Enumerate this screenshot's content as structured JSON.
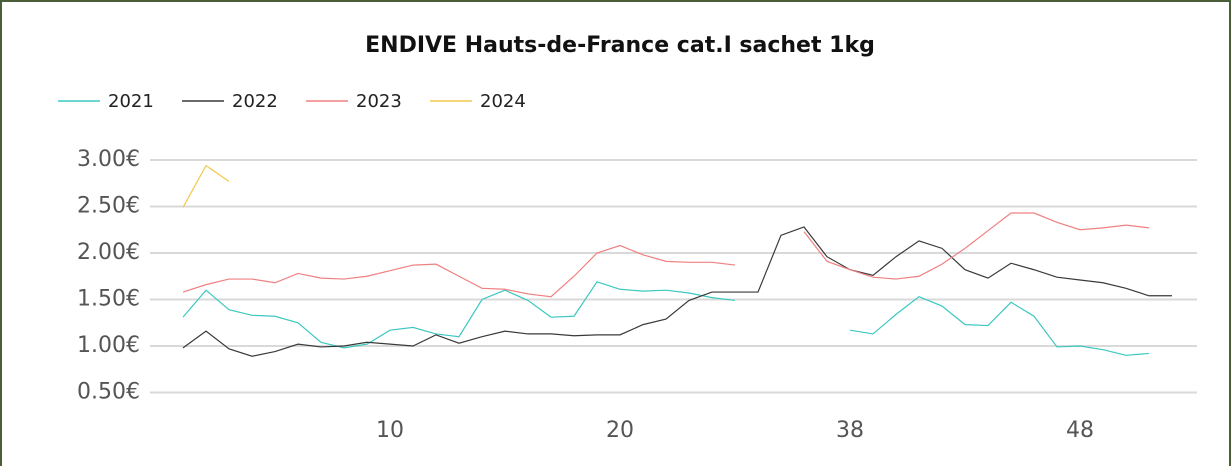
{
  "chart_data": {
    "type": "line",
    "title": "ENDIVE Hauts-de-France cat.I sachet 1kg",
    "categories": [
      null,
      null,
      null,
      null,
      null,
      null,
      null,
      null,
      null,
      "10",
      null,
      null,
      null,
      null,
      null,
      null,
      null,
      null,
      null,
      "20",
      null,
      null,
      null,
      null,
      null,
      null,
      null,
      null,
      null,
      "38",
      null,
      null,
      null,
      null,
      null,
      null,
      null,
      null,
      null,
      "48",
      null,
      null,
      null,
      null
    ],
    "series": [
      {
        "name": "2021",
        "color": "#3cc8c0",
        "values": [
          1.31,
          1.6,
          1.39,
          1.33,
          1.32,
          1.25,
          1.04,
          0.98,
          1.02,
          1.17,
          1.2,
          1.13,
          1.1,
          1.5,
          1.6,
          1.49,
          1.31,
          1.32,
          1.69,
          1.61,
          1.59,
          1.6,
          1.57,
          1.52,
          1.49,
          null,
          null,
          null,
          null,
          1.17,
          1.13,
          1.34,
          1.53,
          1.43,
          1.23,
          1.22,
          1.47,
          1.32,
          0.99,
          1.0,
          0.96,
          0.9,
          0.92,
          null
        ]
      },
      {
        "name": "2022",
        "color": "#3a3a3a",
        "values": [
          0.98,
          1.16,
          0.97,
          0.89,
          0.94,
          1.02,
          0.99,
          1.0,
          1.04,
          1.02,
          1.0,
          1.12,
          1.03,
          1.1,
          1.16,
          1.13,
          1.13,
          1.11,
          1.12,
          1.12,
          1.23,
          1.29,
          1.49,
          1.58,
          1.58,
          1.58,
          2.19,
          2.28,
          1.96,
          1.82,
          1.76,
          1.96,
          2.13,
          2.05,
          1.82,
          1.73,
          1.89,
          1.82,
          1.74,
          1.71,
          1.68,
          1.62,
          1.54,
          1.54
        ]
      },
      {
        "name": "2023",
        "color": "#f08080",
        "values": [
          1.58,
          1.66,
          1.72,
          1.72,
          1.68,
          1.78,
          1.73,
          1.72,
          1.75,
          1.81,
          1.87,
          1.88,
          1.75,
          1.62,
          1.61,
          1.56,
          1.53,
          1.75,
          2.0,
          2.08,
          1.98,
          1.91,
          1.9,
          1.9,
          1.87,
          null,
          null,
          2.23,
          1.91,
          1.82,
          1.74,
          1.72,
          1.75,
          1.88,
          2.05,
          2.24,
          2.43,
          2.43,
          2.33,
          2.25,
          2.27,
          2.3,
          2.27,
          null
        ]
      },
      {
        "name": "2024",
        "color": "#f2c94c",
        "values": [
          2.49,
          2.94,
          2.77,
          null,
          null,
          null,
          null,
          null,
          null,
          null,
          null,
          null,
          null,
          null,
          null,
          null,
          null,
          null,
          null,
          null,
          null,
          null,
          null,
          null,
          null,
          null,
          null,
          null,
          null,
          null,
          null,
          null,
          null,
          null,
          null,
          null,
          null,
          null,
          null,
          null,
          null,
          null,
          null,
          null
        ]
      }
    ],
    "ylim": [
      0.3,
      3.1
    ],
    "yticks": [
      {
        "value": 0.5,
        "label": "0.50€"
      },
      {
        "value": 1.0,
        "label": "1.00€"
      },
      {
        "value": 1.5,
        "label": "1.50€"
      },
      {
        "value": 2.0,
        "label": "2.00€"
      },
      {
        "value": 2.5,
        "label": "2.50€"
      },
      {
        "value": 3.0,
        "label": "3.00€"
      }
    ],
    "grid": true
  }
}
